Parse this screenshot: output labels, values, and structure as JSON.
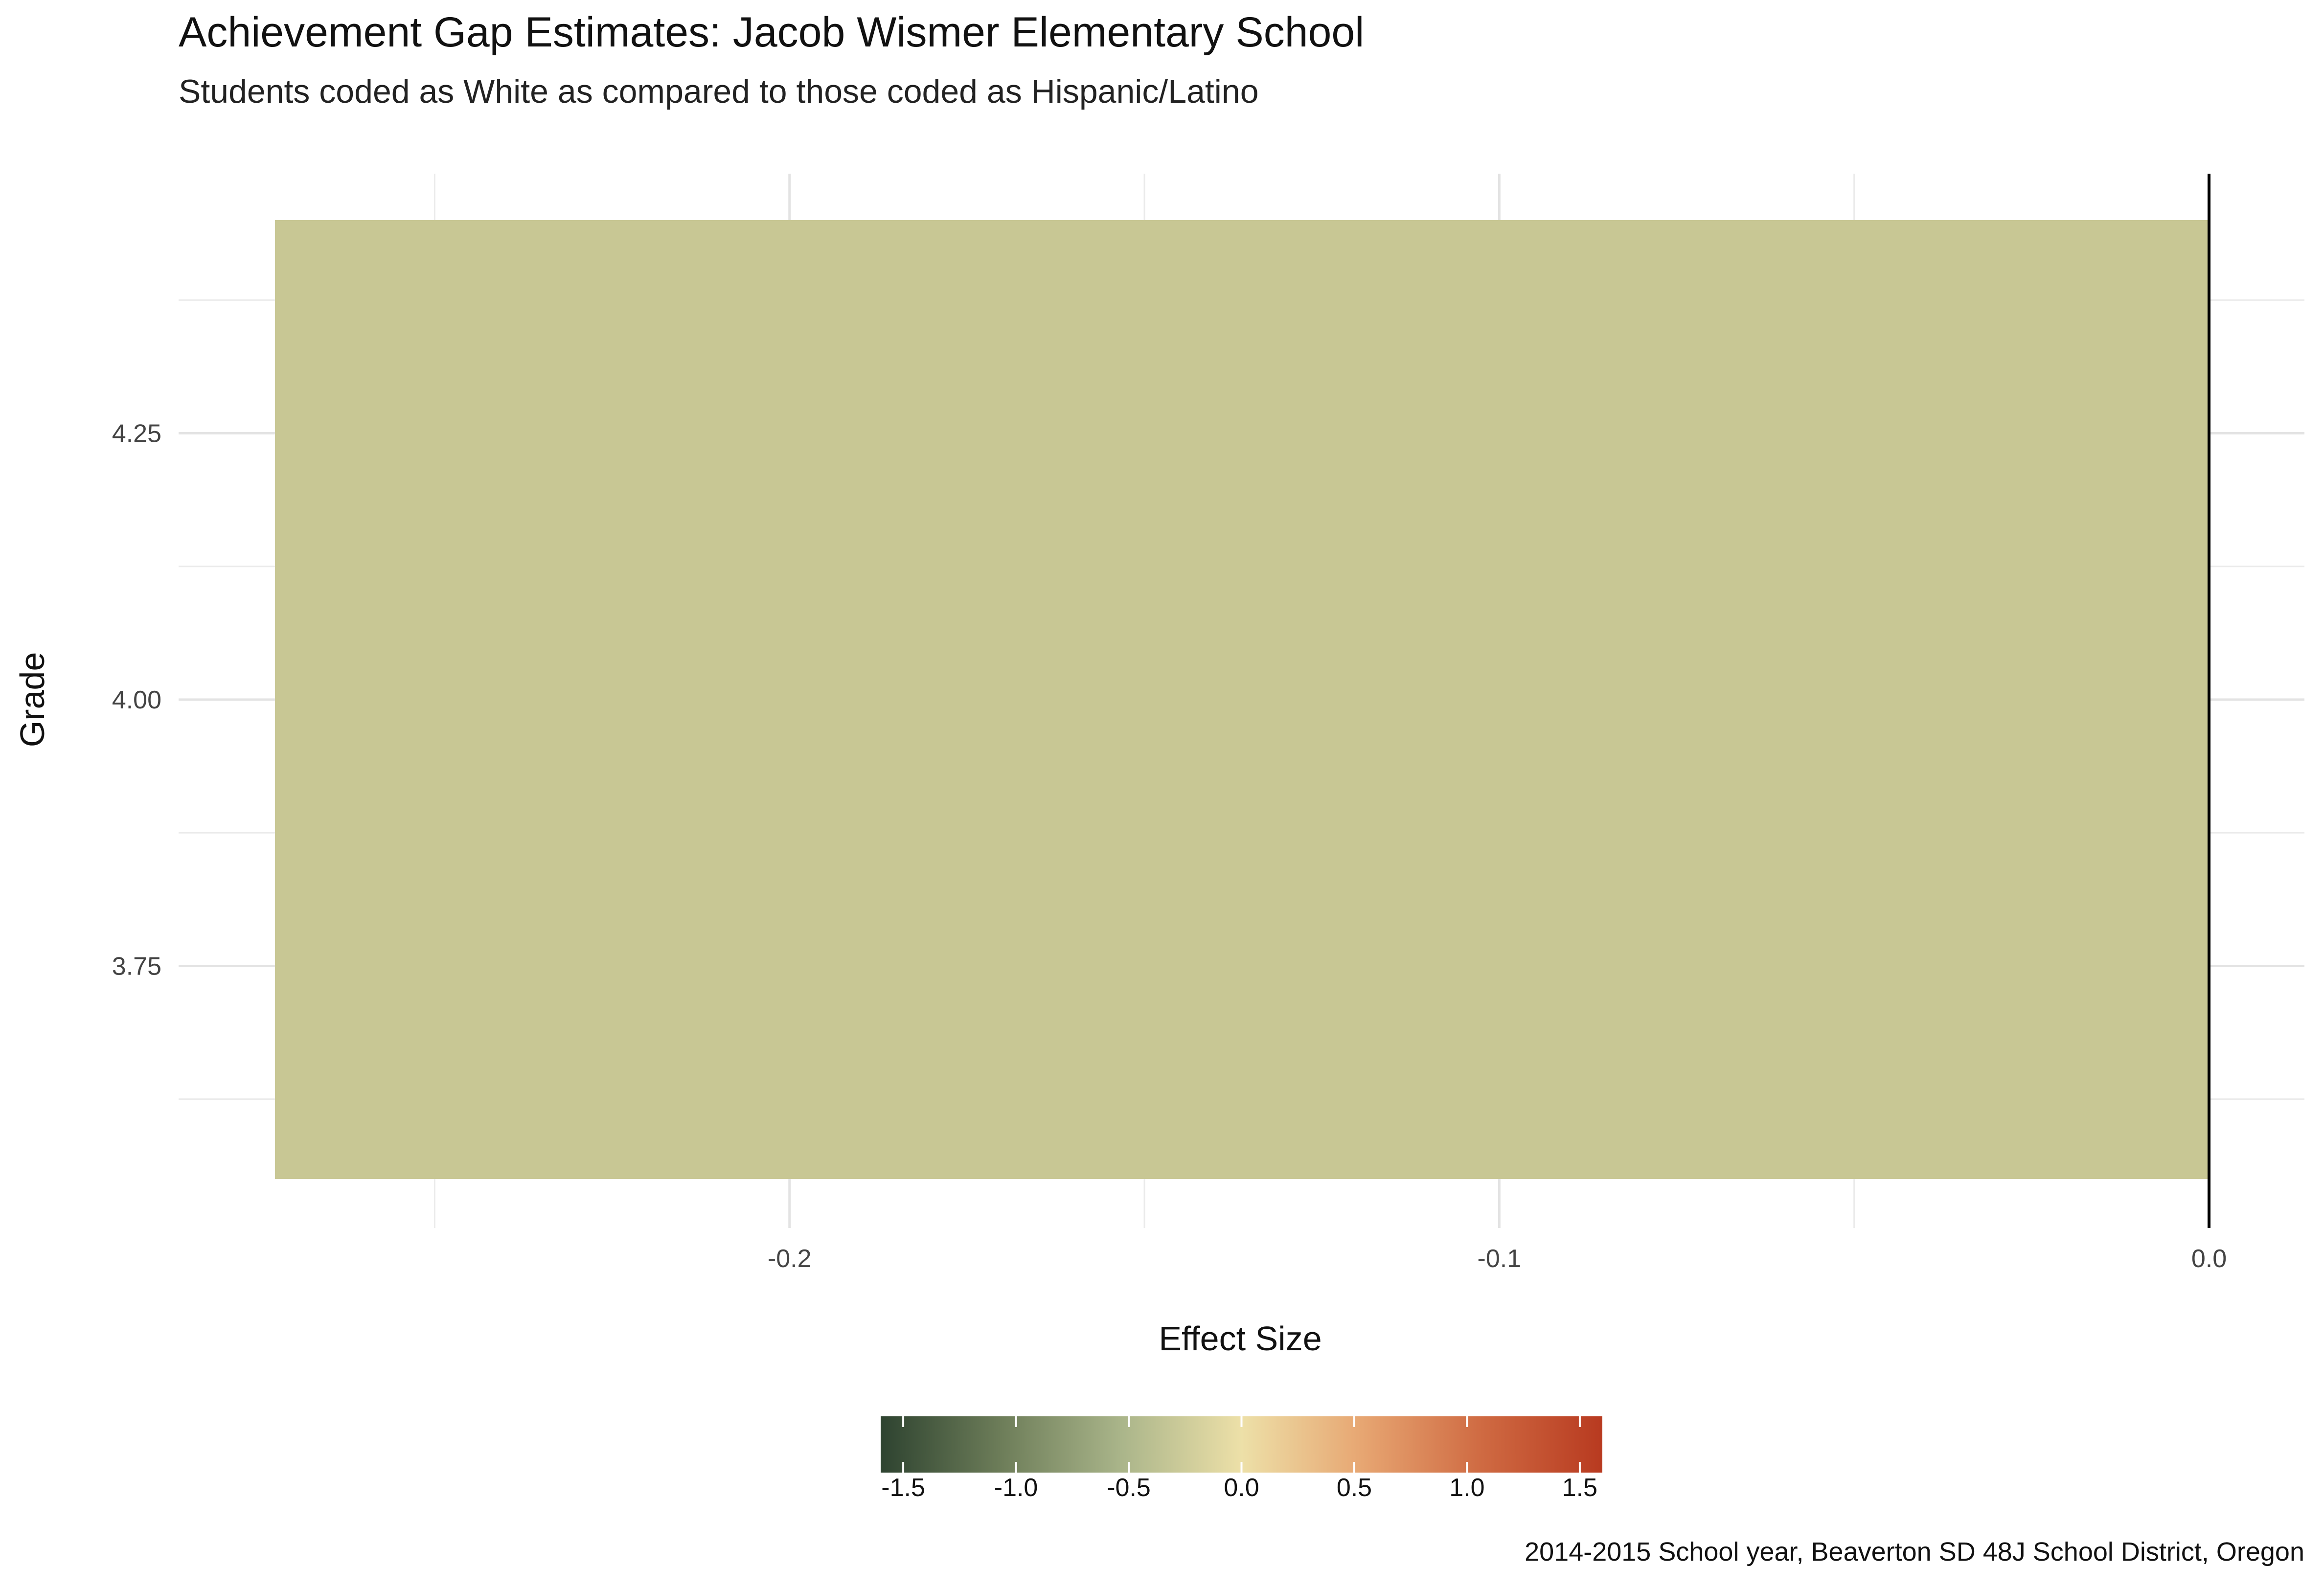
{
  "chart_data": {
    "type": "bar",
    "orientation": "horizontal",
    "title": "Achievement Gap Estimates: Jacob Wismer Elementary School",
    "subtitle": "Students coded as White as compared to those coded as Hispanic/Latino",
    "xlabel": "Effect Size",
    "ylabel": "Grade",
    "xlim": [
      -0.2725,
      0.003
    ],
    "ylim": [
      3.55,
      4.45
    ],
    "x_ticks": [
      -0.2,
      -0.1,
      0.0
    ],
    "x_tick_labels": [
      "-0.2",
      "-0.1",
      "0.0"
    ],
    "y_ticks": [
      3.75,
      4.0,
      4.25
    ],
    "y_tick_labels": [
      "3.75",
      "4.00",
      "4.25"
    ],
    "grid": true,
    "reference_line_x": 0.0,
    "bars": [
      {
        "grade": 4,
        "effect_size": -0.2725,
        "color": "#c8c794"
      }
    ],
    "legend": {
      "type": "colorbar",
      "position": "bottom",
      "limits": [
        -1.6,
        1.6
      ],
      "ticks": [
        -1.5,
        -1.0,
        -0.5,
        0.0,
        0.5,
        1.0,
        1.5
      ],
      "tick_labels": [
        "-1.5",
        "-1.0",
        "-0.5",
        "0.0",
        "0.5",
        "1.0",
        "1.5"
      ],
      "colors": [
        "#2e4330",
        "#6d7d59",
        "#aab58a",
        "#ede0a8",
        "#e7a672",
        "#cf6a42",
        "#b83a20"
      ]
    },
    "caption": "2014-2015 School year, Beaverton SD 48J School District, Oregon"
  }
}
